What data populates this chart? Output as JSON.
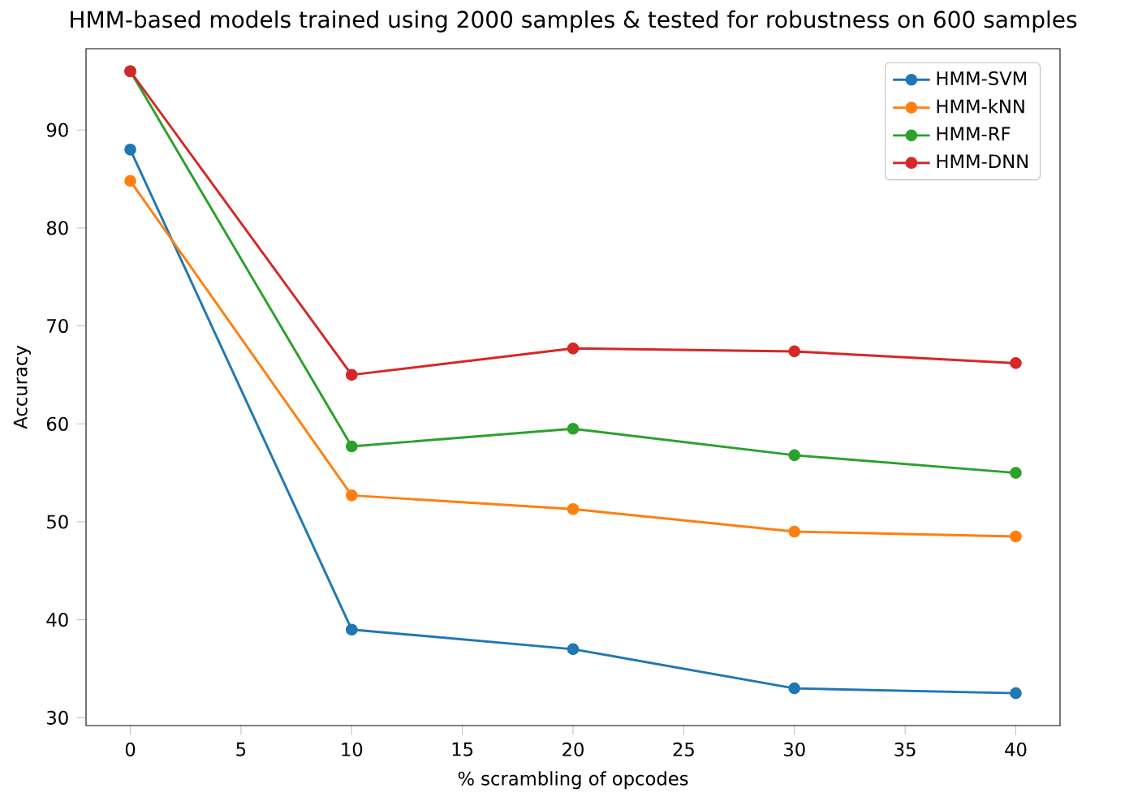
{
  "chart_data": {
    "type": "line",
    "title": "HMM-based models trained using 2000 samples & tested for robustness on 600 samples",
    "xlabel": "% scrambling of opcodes",
    "ylabel": "Accuracy",
    "x": [
      0,
      10,
      20,
      30,
      40
    ],
    "series": [
      {
        "name": "HMM-SVM",
        "color": "#1f77b4",
        "values": [
          88,
          39,
          37,
          33,
          32.5
        ]
      },
      {
        "name": "HMM-kNN",
        "color": "#ff7f0e",
        "values": [
          84.8,
          52.7,
          51.3,
          49,
          48.5
        ]
      },
      {
        "name": "HMM-RF",
        "color": "#2ca02c",
        "values": [
          96,
          57.7,
          59.5,
          56.8,
          55
        ]
      },
      {
        "name": "HMM-DNN",
        "color": "#d62728",
        "values": [
          96,
          65,
          67.7,
          67.4,
          66.2
        ]
      }
    ],
    "xlim": [
      -2,
      42
    ],
    "ylim": [
      29.2,
      98.3
    ],
    "xticks": [
      0,
      5,
      10,
      15,
      20,
      25,
      30,
      35,
      40
    ],
    "yticks": [
      30,
      40,
      50,
      60,
      70,
      80,
      90
    ],
    "legend": "top right",
    "marker": "circle",
    "line_style": "solid",
    "grid": false
  }
}
